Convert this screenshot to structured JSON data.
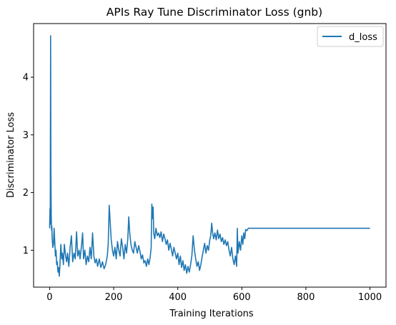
{
  "chart_data": {
    "type": "line",
    "title": "APIs Ray Tune Discriminator Loss (gnb)",
    "xlabel": "Training Iterations",
    "ylabel": "Discriminator Loss",
    "xlim": [
      -50,
      1050
    ],
    "ylim": [
      0.36,
      4.93
    ],
    "xticks": [
      0,
      200,
      400,
      600,
      800,
      1000
    ],
    "yticks": [
      1,
      2,
      3,
      4
    ],
    "grid": false,
    "legend": {
      "placement": "top-right",
      "entries": [
        "d_loss"
      ]
    },
    "series": [
      {
        "name": "d_loss",
        "color": "#1f77b4",
        "points": [
          [
            0,
            1.38
          ],
          [
            1,
            1.72
          ],
          [
            2,
            1.45
          ],
          [
            3,
            4.72
          ],
          [
            4,
            2.4
          ],
          [
            5,
            1.6
          ],
          [
            6,
            1.35
          ],
          [
            7,
            1.42
          ],
          [
            8,
            1.2
          ],
          [
            10,
            1.05
          ],
          [
            12,
            1.1
          ],
          [
            14,
            1.38
          ],
          [
            16,
            1.15
          ],
          [
            18,
            0.9
          ],
          [
            20,
            1.0
          ],
          [
            22,
            0.75
          ],
          [
            24,
            0.8
          ],
          [
            26,
            0.62
          ],
          [
            28,
            0.7
          ],
          [
            30,
            0.55
          ],
          [
            32,
            0.72
          ],
          [
            35,
            1.1
          ],
          [
            38,
            0.85
          ],
          [
            40,
            0.95
          ],
          [
            43,
            0.75
          ],
          [
            46,
            1.1
          ],
          [
            50,
            0.9
          ],
          [
            53,
            0.8
          ],
          [
            56,
            0.95
          ],
          [
            60,
            0.72
          ],
          [
            64,
            1.05
          ],
          [
            68,
            1.25
          ],
          [
            72,
            0.8
          ],
          [
            76,
            0.95
          ],
          [
            80,
            0.85
          ],
          [
            84,
            1.32
          ],
          [
            88,
            0.9
          ],
          [
            92,
            1.0
          ],
          [
            95,
            0.85
          ],
          [
            100,
            1.1
          ],
          [
            103,
            1.3
          ],
          [
            106,
            0.85
          ],
          [
            110,
            1.0
          ],
          [
            114,
            0.75
          ],
          [
            118,
            0.9
          ],
          [
            122,
            0.8
          ],
          [
            126,
            1.05
          ],
          [
            130,
            0.85
          ],
          [
            134,
            1.3
          ],
          [
            138,
            0.9
          ],
          [
            142,
            0.78
          ],
          [
            146,
            0.85
          ],
          [
            150,
            0.72
          ],
          [
            155,
            0.85
          ],
          [
            160,
            0.7
          ],
          [
            165,
            0.8
          ],
          [
            170,
            0.68
          ],
          [
            175,
            0.75
          ],
          [
            180,
            0.9
          ],
          [
            183,
            1.1
          ],
          [
            186,
            1.78
          ],
          [
            189,
            1.5
          ],
          [
            192,
            1.2
          ],
          [
            196,
            1.0
          ],
          [
            200,
            0.9
          ],
          [
            204,
            1.05
          ],
          [
            208,
            0.85
          ],
          [
            212,
            1.15
          ],
          [
            216,
            1.0
          ],
          [
            220,
            0.9
          ],
          [
            224,
            1.2
          ],
          [
            228,
            1.05
          ],
          [
            232,
            0.85
          ],
          [
            236,
            1.1
          ],
          [
            240,
            0.95
          ],
          [
            244,
            1.2
          ],
          [
            247,
            1.58
          ],
          [
            250,
            1.3
          ],
          [
            254,
            1.1
          ],
          [
            258,
            1.0
          ],
          [
            262,
            0.95
          ],
          [
            266,
            1.15
          ],
          [
            270,
            1.05
          ],
          [
            274,
            0.95
          ],
          [
            278,
            1.08
          ],
          [
            282,
            0.98
          ],
          [
            286,
            0.85
          ],
          [
            290,
            0.92
          ],
          [
            294,
            0.78
          ],
          [
            298,
            0.82
          ],
          [
            302,
            0.72
          ],
          [
            306,
            0.85
          ],
          [
            310,
            0.75
          ],
          [
            314,
            0.88
          ],
          [
            317,
            1.05
          ],
          [
            319,
            1.8
          ],
          [
            321,
            1.55
          ],
          [
            323,
            1.75
          ],
          [
            325,
            1.3
          ],
          [
            328,
            1.2
          ],
          [
            332,
            1.38
          ],
          [
            336,
            1.25
          ],
          [
            340,
            1.3
          ],
          [
            344,
            1.22
          ],
          [
            348,
            1.32
          ],
          [
            352,
            1.15
          ],
          [
            356,
            1.28
          ],
          [
            360,
            1.2
          ],
          [
            364,
            1.1
          ],
          [
            368,
            1.18
          ],
          [
            372,
            1.0
          ],
          [
            376,
            1.12
          ],
          [
            380,
            1.02
          ],
          [
            384,
            0.9
          ],
          [
            388,
            1.05
          ],
          [
            392,
            0.95
          ],
          [
            396,
            0.85
          ],
          [
            400,
            0.95
          ],
          [
            404,
            0.75
          ],
          [
            408,
            0.9
          ],
          [
            412,
            0.7
          ],
          [
            416,
            0.82
          ],
          [
            420,
            0.65
          ],
          [
            424,
            0.75
          ],
          [
            428,
            0.6
          ],
          [
            432,
            0.72
          ],
          [
            436,
            0.62
          ],
          [
            440,
            0.75
          ],
          [
            444,
            0.9
          ],
          [
            448,
            1.25
          ],
          [
            452,
            1.0
          ],
          [
            456,
            0.85
          ],
          [
            460,
            0.72
          ],
          [
            464,
            0.8
          ],
          [
            468,
            0.65
          ],
          [
            472,
            0.75
          ],
          [
            476,
            0.88
          ],
          [
            480,
            1.0
          ],
          [
            484,
            1.12
          ],
          [
            488,
            0.95
          ],
          [
            492,
            1.08
          ],
          [
            496,
            1.0
          ],
          [
            500,
            1.18
          ],
          [
            503,
            1.25
          ],
          [
            506,
            1.47
          ],
          [
            509,
            1.3
          ],
          [
            512,
            1.2
          ],
          [
            516,
            1.3
          ],
          [
            520,
            1.18
          ],
          [
            524,
            1.35
          ],
          [
            528,
            1.2
          ],
          [
            532,
            1.28
          ],
          [
            536,
            1.15
          ],
          [
            540,
            1.22
          ],
          [
            544,
            1.1
          ],
          [
            548,
            1.18
          ],
          [
            552,
            1.08
          ],
          [
            556,
            1.15
          ],
          [
            560,
            1.0
          ],
          [
            564,
            0.9
          ],
          [
            568,
            1.05
          ],
          [
            572,
            0.85
          ],
          [
            576,
            0.75
          ],
          [
            580,
            0.9
          ],
          [
            584,
            0.72
          ],
          [
            586,
            1.38
          ],
          [
            588,
            0.95
          ],
          [
            592,
            1.15
          ],
          [
            596,
            1.0
          ],
          [
            600,
            1.25
          ],
          [
            603,
            1.1
          ],
          [
            606,
            1.3
          ],
          [
            609,
            1.2
          ],
          [
            612,
            1.36
          ],
          [
            616,
            1.34
          ],
          [
            620,
            1.38
          ],
          [
            650,
            1.38
          ],
          [
            700,
            1.38
          ],
          [
            750,
            1.38
          ],
          [
            800,
            1.38
          ],
          [
            850,
            1.38
          ],
          [
            900,
            1.38
          ],
          [
            950,
            1.38
          ],
          [
            1000,
            1.38
          ]
        ]
      }
    ]
  }
}
